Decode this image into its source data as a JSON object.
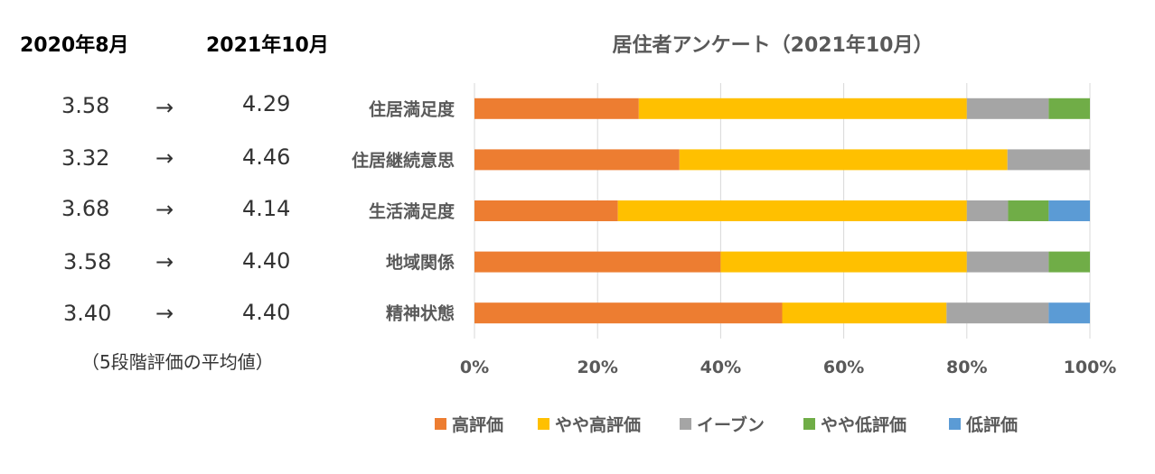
{
  "left_panel": {
    "header_2020": "2020年8月",
    "header_2021": "2021年10月",
    "arrow": "→",
    "rows": [
      {
        "before": "3.58",
        "after": "4.29"
      },
      {
        "before": "3.32",
        "after": "4.46"
      },
      {
        "before": "3.68",
        "after": "4.14"
      },
      {
        "before": "3.58",
        "after": "4.40"
      },
      {
        "before": "3.40",
        "after": "4.40"
      }
    ],
    "note": "（5段階評価の平均値）"
  },
  "chart_data": {
    "type": "bar",
    "orientation": "horizontal",
    "stacked": "percent",
    "title": "居住者アンケート（2021年10月）",
    "categories": [
      "住居満足度",
      "住居継続意思",
      "生活満足度",
      "地域関係",
      "精神状態"
    ],
    "x_ticks": [
      "0%",
      "20%",
      "40%",
      "60%",
      "80%",
      "100%"
    ],
    "xlim": [
      0,
      100
    ],
    "grid": true,
    "legend_position": "bottom",
    "series": [
      {
        "name": "高評価",
        "color": "#ED7D31",
        "values": [
          26.7,
          33.3,
          23.3,
          40.0,
          50.0
        ]
      },
      {
        "name": "やや高評価",
        "color": "#FFC000",
        "values": [
          53.3,
          53.3,
          56.7,
          40.0,
          26.7
        ]
      },
      {
        "name": "イーブン",
        "color": "#A5A5A5",
        "values": [
          13.3,
          13.4,
          6.7,
          13.3,
          16.6
        ]
      },
      {
        "name": "やや低評価",
        "color": "#70AD47",
        "values": [
          6.7,
          0,
          6.6,
          6.7,
          0
        ]
      },
      {
        "name": "低評価",
        "color": "#5B9BD5",
        "values": [
          0,
          0,
          6.7,
          0,
          6.7
        ]
      }
    ]
  }
}
